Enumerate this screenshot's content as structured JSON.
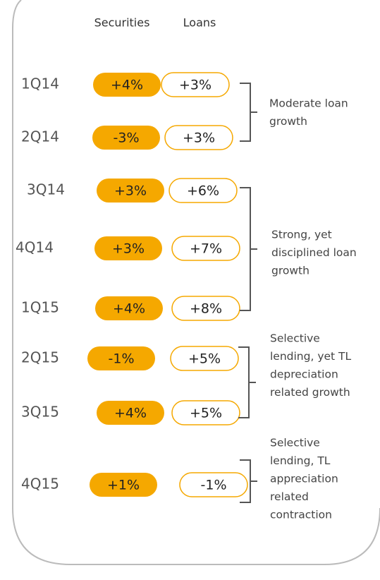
{
  "header": {
    "securities": "Securities",
    "loans": "Loans"
  },
  "rows": [
    {
      "quarter": "1Q14",
      "securities": "+4%",
      "loans": "+3%"
    },
    {
      "quarter": "2Q14",
      "securities": "-3%",
      "loans": "+3%"
    },
    {
      "quarter": "3Q14",
      "securities": "+3%",
      "loans": "+6%"
    },
    {
      "quarter": "4Q14",
      "securities": "+3%",
      "loans": "+7%"
    },
    {
      "quarter": "1Q15",
      "securities": "+4%",
      "loans": "+8%"
    },
    {
      "quarter": "2Q15",
      "securities": "-1%",
      "loans": "+5%"
    },
    {
      "quarter": "3Q15",
      "securities": "+4%",
      "loans": "+5%"
    },
    {
      "quarter": "4Q15",
      "securities": "+1%",
      "loans": "-1%"
    }
  ],
  "groups": [
    {
      "label": [
        "Moderate loan",
        "growth"
      ]
    },
    {
      "label": [
        "Strong, yet",
        "disciplined loan",
        "growth"
      ]
    },
    {
      "label": [
        "Selective",
        "lending, yet TL",
        "depreciation",
        "related growth"
      ]
    },
    {
      "label": [
        "Selective",
        "lending, TL",
        "appreciation",
        "related",
        "contraction"
      ]
    }
  ]
}
